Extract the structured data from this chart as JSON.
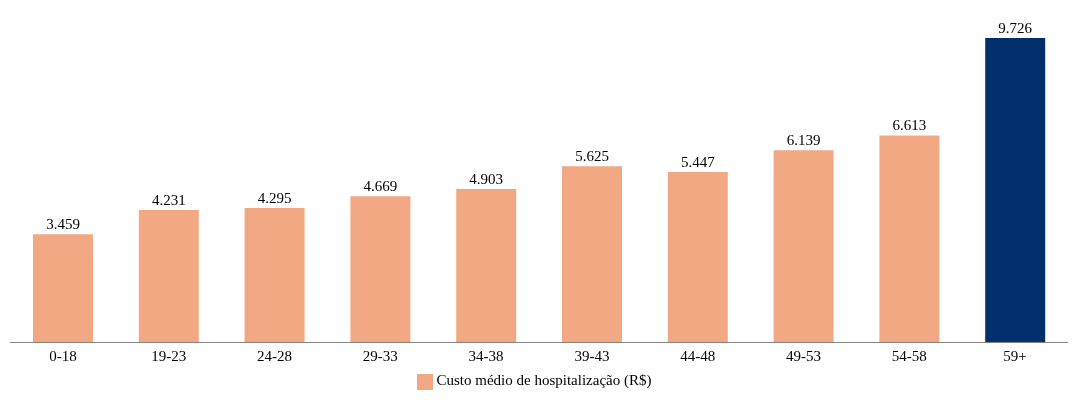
{
  "chart_data": {
    "type": "bar",
    "categories": [
      "0-18",
      "19-23",
      "24-28",
      "29-33",
      "34-38",
      "39-43",
      "44-48",
      "49-53",
      "54-58",
      "59+"
    ],
    "series": [
      {
        "name": "Custo médio de hospitalização (R$)",
        "color": "#f2a983",
        "colors": [
          "#f2a983",
          "#f2a983",
          "#f2a983",
          "#f2a983",
          "#f2a983",
          "#f2a983",
          "#f2a983",
          "#f2a983",
          "#f2a983",
          "#002f6c"
        ],
        "values": [
          3.459,
          4.231,
          4.295,
          4.669,
          4.903,
          5.625,
          5.447,
          6.139,
          6.613,
          9.726
        ]
      }
    ],
    "data_labels": true,
    "legend": "bottom",
    "grid": false
  }
}
